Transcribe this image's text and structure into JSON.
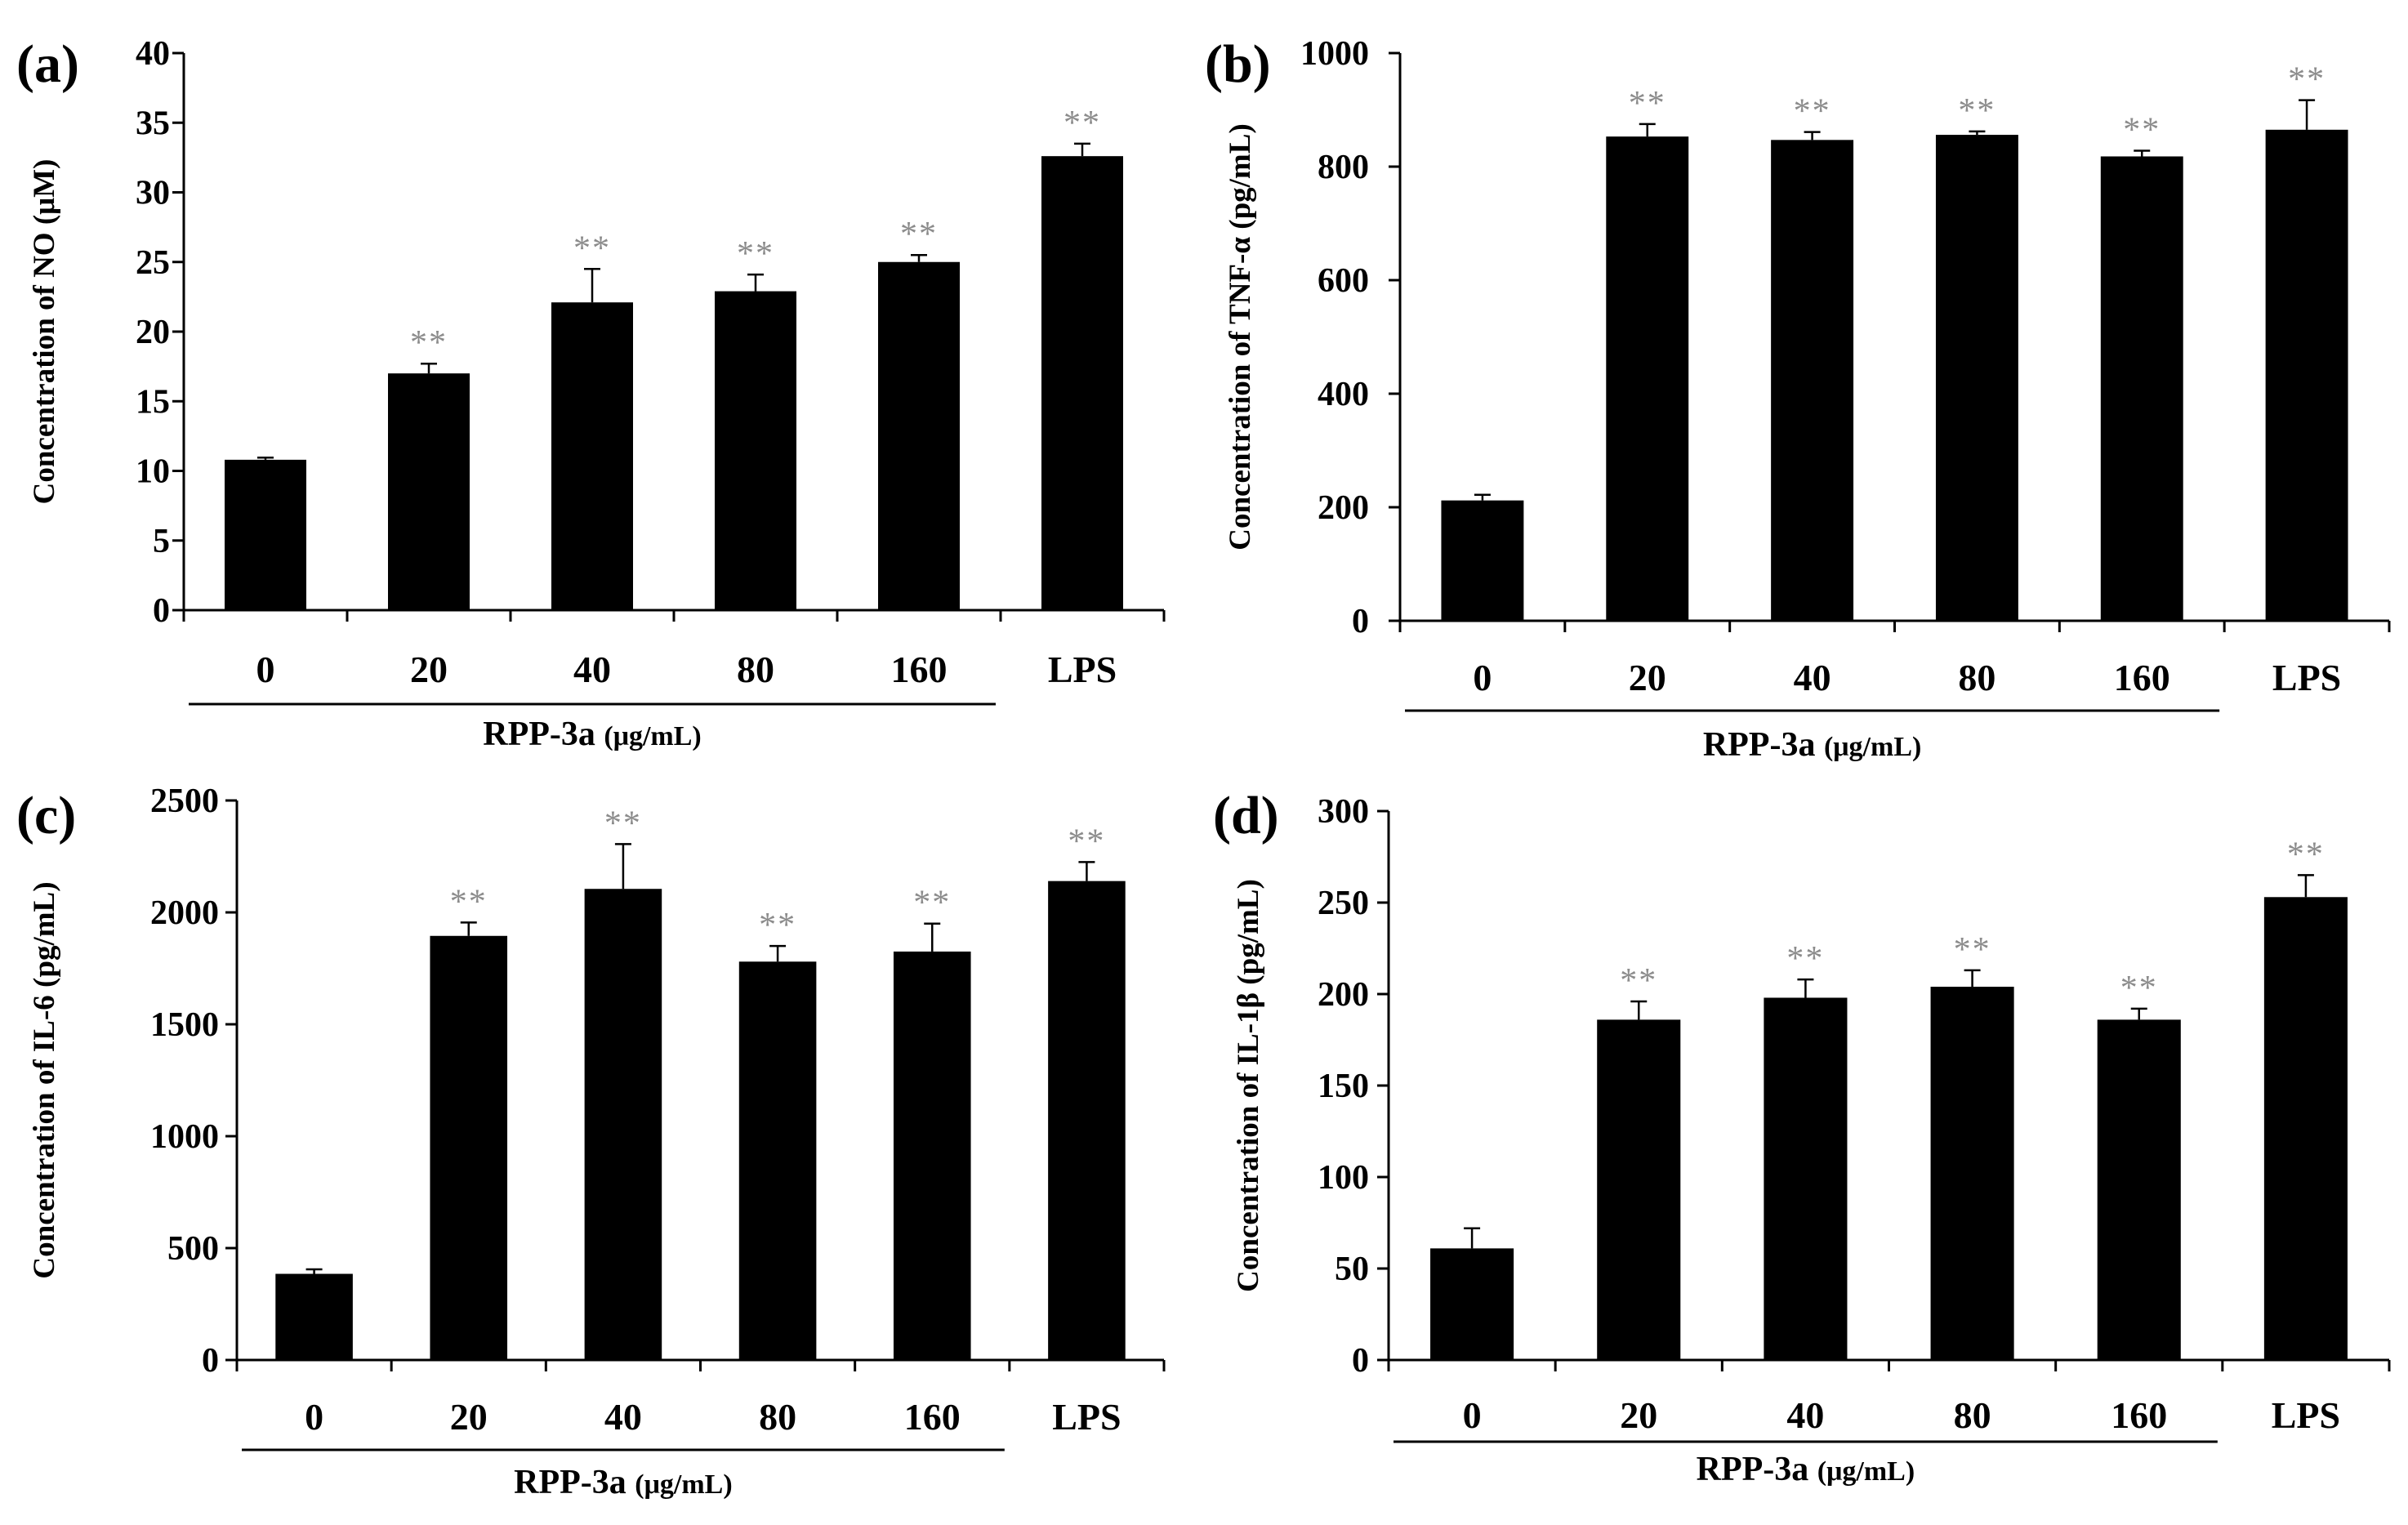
{
  "colors": {
    "bar": "#000000",
    "axis": "#000000",
    "significance": "#8c8c8c"
  },
  "chart_data": [
    {
      "panel": "(a)",
      "type": "bar",
      "categories": [
        "0",
        "20",
        "40",
        "80",
        "160",
        "LPS"
      ],
      "values": [
        10.8,
        17.0,
        22.1,
        22.9,
        25.0,
        32.6
      ],
      "errors": [
        0.15,
        0.7,
        2.4,
        1.2,
        0.5,
        0.9
      ],
      "significance": [
        "",
        "**",
        "**",
        "**",
        "**",
        "**"
      ],
      "ylabel": "Concentration of NO (μM)",
      "ylim": [
        0,
        40
      ],
      "yticks": [
        0,
        5,
        10,
        15,
        20,
        25,
        30,
        35,
        40
      ],
      "group_label": "RPP-3a",
      "group_unit": "(μg/mL)",
      "group_span": [
        "0",
        "160"
      ]
    },
    {
      "panel": "(b)",
      "type": "bar",
      "categories": [
        "0",
        "20",
        "40",
        "80",
        "160",
        "LPS"
      ],
      "values": [
        212,
        853,
        847,
        856,
        818,
        865
      ],
      "errors": [
        10,
        22,
        14,
        6,
        10,
        52
      ],
      "significance": [
        "",
        "**",
        "**",
        "**",
        "**",
        "**"
      ],
      "ylabel": "Concentration of TNF-α (pg/mL)",
      "ylim": [
        0,
        1000
      ],
      "yticks": [
        0,
        200,
        400,
        600,
        800,
        1000
      ],
      "group_label": "RPP-3a",
      "group_unit": "(μg/mL)",
      "group_span": [
        "0",
        "160"
      ]
    },
    {
      "panel": "(c)",
      "type": "bar",
      "categories": [
        "0",
        "20",
        "40",
        "80",
        "160",
        "LPS"
      ],
      "values": [
        385,
        1895,
        2105,
        1780,
        1825,
        2140
      ],
      "errors": [
        20,
        60,
        200,
        70,
        125,
        85
      ],
      "significance": [
        "",
        "**",
        "**",
        "**",
        "**",
        "**"
      ],
      "ylabel": "Concentration of IL-6 (pg/mL)",
      "ylim": [
        0,
        2500
      ],
      "yticks": [
        0,
        500,
        1000,
        1500,
        2000,
        2500
      ],
      "group_label": "RPP-3a",
      "group_unit": "(μg/mL)",
      "group_span": [
        "0",
        "160"
      ]
    },
    {
      "panel": "(d)",
      "type": "bar",
      "categories": [
        "0",
        "20",
        "40",
        "80",
        "160",
        "LPS"
      ],
      "values": [
        61,
        186,
        198,
        204,
        186,
        253
      ],
      "errors": [
        11,
        10,
        10,
        9,
        6,
        12
      ],
      "significance": [
        "",
        "**",
        "**",
        "**",
        "**",
        "**"
      ],
      "ylabel": "Concentration of IL-1β (pg/mL)",
      "ylim": [
        0,
        300
      ],
      "yticks": [
        0,
        50,
        100,
        150,
        200,
        250,
        300
      ],
      "group_label": "RPP-3a",
      "group_unit": "(μg/mL)",
      "group_span": [
        "0",
        "160"
      ]
    }
  ]
}
